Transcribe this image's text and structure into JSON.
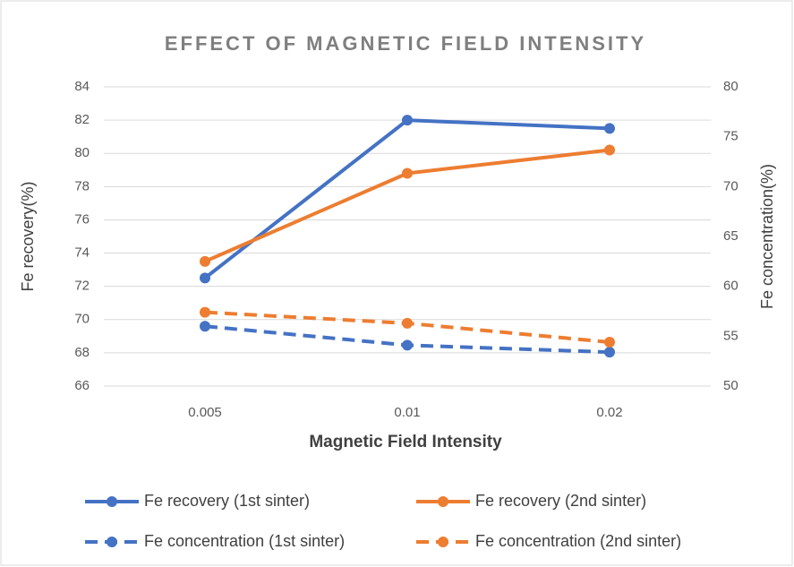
{
  "chart_data": {
    "type": "line",
    "title": "EFFECT OF MAGNETIC FIELD INTENSITY",
    "x_label": "Magnetic Field Intensity",
    "y_label": "Fe recovery(%)",
    "y2_label": "Fe concentration(%)",
    "categories": [
      "0.005",
      "0.01",
      "0.02"
    ],
    "ylim": [
      66,
      84
    ],
    "yticks": [
      66,
      68,
      70,
      72,
      74,
      76,
      78,
      80,
      82,
      84
    ],
    "y2lim": [
      50,
      80
    ],
    "y2ticks": [
      50,
      55,
      60,
      65,
      70,
      75,
      80
    ],
    "grid": true,
    "legend": "bottom",
    "series": [
      {
        "name": "Fe recovery (1st sinter)",
        "color": "#4472c4",
        "dashed": false,
        "values": [
          72.5,
          82,
          81.5
        ]
      },
      {
        "name": "Fe recovery (2nd sinter)",
        "color": "#ed7d31",
        "dashed": false,
        "values": [
          73.5,
          78.8,
          80.2
        ]
      },
      {
        "name": "Fe concentration (1st sinter)",
        "color": "#4472c4",
        "dashed": true,
        "axis": "y2",
        "values": [
          56.0,
          54.1,
          53.4
        ]
      },
      {
        "name": "Fe concentration (2nd sinter)",
        "color": "#ed7d31",
        "dashed": true,
        "axis": "y2",
        "values": [
          57.4,
          56.3,
          54.4
        ]
      }
    ]
  }
}
